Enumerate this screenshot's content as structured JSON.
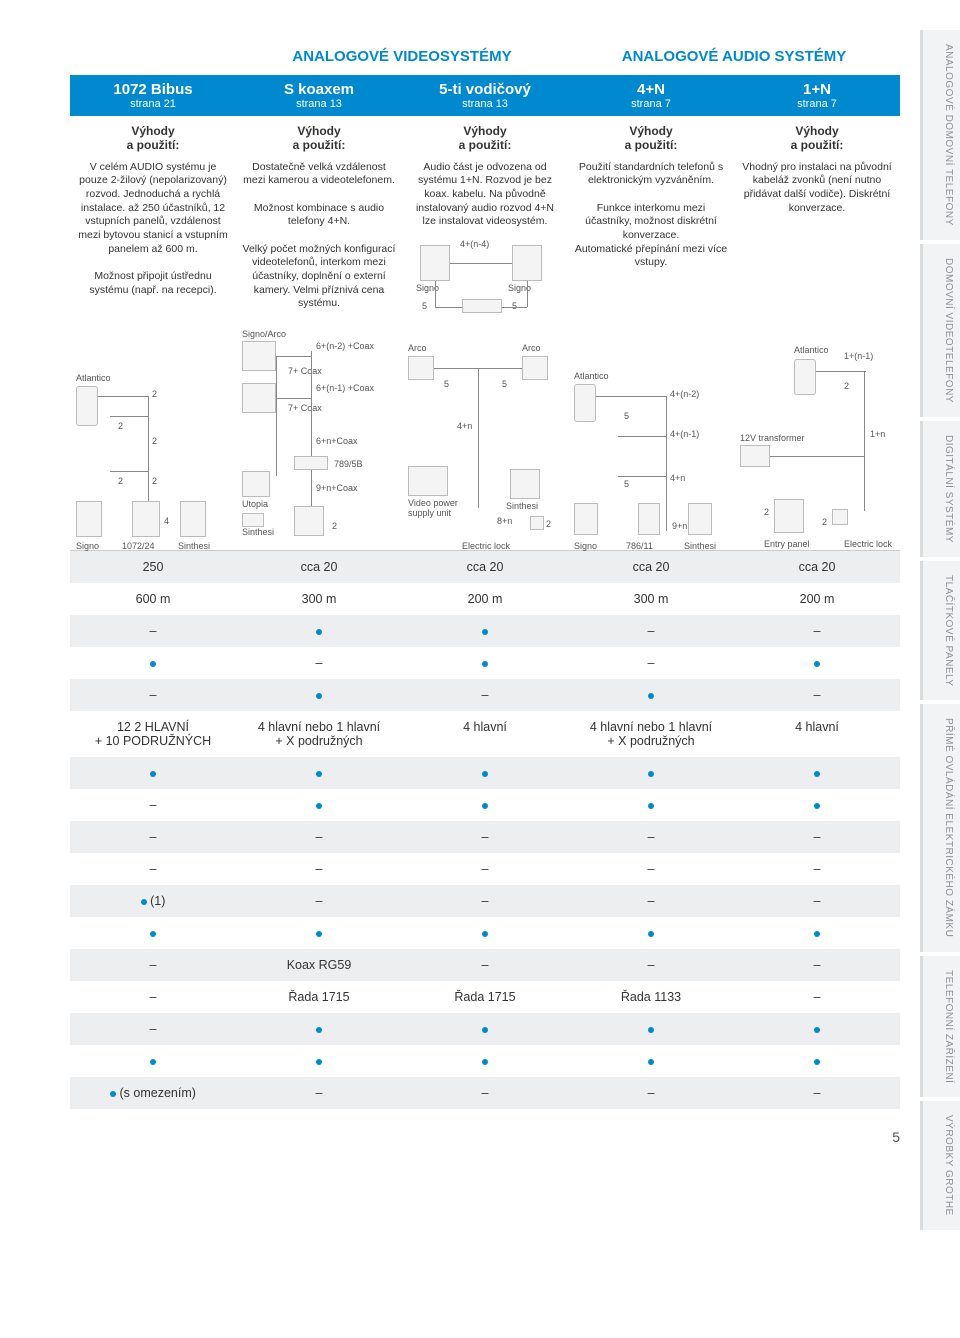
{
  "page_number": "5",
  "top_headers": {
    "video": "ANALOGOVÉ VIDEOSYSTÉMY",
    "audio": "ANALOGOVÉ AUDIO SYSTÉMY"
  },
  "side_tabs": [
    "ANALOGOVÉ DOMOVNÍ TELEFONY",
    "DOMOVNÍ VIDEOTELEFONY",
    "DIGITÁLNÍ SYSTÉMY",
    "TLAČÍTKOVÉ PANELY",
    "PŘÍMÉ OVLÁDÁNÍ ELEKTRICKÉHO ZÁMKU",
    "TELEFONNÍ ZAŘÍZENÍ",
    "VÝROBKY GROTHE"
  ],
  "columns": [
    {
      "title": "1072 Bibus",
      "page_ref": "strana 21",
      "vyhody_title": "Výhody\na použití:",
      "vyhody_body": "V celém AUDIO systému je pouze 2-žilový (nepolarizo­vaný) rozvod. Jednoduchá a rychlá instalace. až 250 účastníků, 12 vstupních panelů, vzdálenost mezi bytovou stanicí a vstupním panelem až 600 m.\n\nMožnost připojit ústřednu systému (např. na recepci)."
    },
    {
      "title": "S koaxem",
      "page_ref": "strana 13",
      "vyhody_title": "Výhody\na použití:",
      "vyhody_body": "Dostatečně velká vzdálenost mezi kamerou a videotelefonem.\n\nMožnost kombinace s audio telefony 4+N.\n\nVelký počet možných konfigurací videotelefonů, interkom mezi účastníky, doplnění o externí kamery. Velmi příznivá cena systému."
    },
    {
      "title": "5-ti vodičový",
      "page_ref": "strana 13",
      "vyhody_title": "Výhody\na použití:",
      "vyhody_body": "Audio část je odvozena od systému 1+N. Rozvod je bez koax. kabelu. Na původně instalovaný audio rozvod 4+N lze instalovat videosystém."
    },
    {
      "title": "4+N",
      "page_ref": "strana 7",
      "vyhody_title": "Výhody\na použití:",
      "vyhody_body": "Použití standardních telefonů s elektronickým vyzváněním.\n\nFunkce interkomu mezi účastníky, možnost diskrétní konverzace.\nAutomatické přepínání mezi více vstupy."
    },
    {
      "title": "1+N",
      "page_ref": "strana 7",
      "vyhody_title": "Výhody\na použití:",
      "vyhody_body": "Vhodný pro instalaci na pů­vodní kabeláž zvonků (není nutno přidávat další vodiče). Diskrétní konverzace."
    }
  ],
  "diagrams": {
    "c3_inline": {
      "signo_l": "Signo",
      "signo_r": "Signo",
      "wires": "4+(n-4)",
      "five_l": "5",
      "five_r": "5"
    },
    "c1": {
      "atlantico": "Atlantico",
      "signo": "Signo",
      "module": "1072/24",
      "sinthesi": "Sinthesi",
      "two": "2",
      "four": "4"
    },
    "c2": {
      "signoarco": "Signo/Arco",
      "utopia": "Utopia",
      "sinthesi": "Sinthesi",
      "l1": "6+(n-2) +Coax",
      "l2": "7+ Coax",
      "l3": "6+(n-1) +Coax",
      "l4": "7+ Coax",
      "l5": "6+n+Coax",
      "l6": "789/5B",
      "l7": "9+n+Coax",
      "two": "2"
    },
    "c3": {
      "arco_l": "Arco",
      "arco_r": "Arco",
      "five": "5",
      "four_n": "4+n",
      "eight_n": "8+n",
      "two": "2",
      "vpower": "Video power supply unit",
      "sinthesi": "Sinthesi",
      "elock": "Electric lock"
    },
    "c4": {
      "atlantico": "Atlantico",
      "l1": "4+(n-2)",
      "l2": "4+(n-1)",
      "l3": "4+n",
      "five": "5",
      "nine_n": "9+n",
      "signo": "Signo",
      "module": "786/11",
      "sinthesi": "Sinthesi"
    },
    "c5": {
      "atlantico": "Atlantico",
      "l1": "1+(n-1)",
      "two": "2",
      "one_n": "1+n",
      "transformer": "12V transformer",
      "entry": "Entry panel",
      "elock": "Electric lock"
    }
  },
  "table_rows": [
    {
      "bg": "grey",
      "cells": [
        "250",
        "cca 20",
        "cca 20",
        "cca 20",
        "cca 20"
      ]
    },
    {
      "bg": "white",
      "cells": [
        "600 m",
        "300 m",
        "200 m",
        "300 m",
        "200 m"
      ]
    },
    {
      "bg": "grey",
      "cells": [
        "–",
        "•",
        "•",
        "–",
        "–"
      ]
    },
    {
      "bg": "white",
      "cells": [
        "•",
        "–",
        "•",
        "–",
        "•"
      ]
    },
    {
      "bg": "grey",
      "cells": [
        "–",
        "•",
        "–",
        "•",
        "–"
      ]
    },
    {
      "bg": "white",
      "cells": [
        "12   2 HLAVNÍ\n+ 10 PODRUŽNÝCH",
        "4 hlavní nebo 1 hlavní\n+ X podružných",
        "4 hlavní",
        "4 hlavní nebo 1 hlavní\n+ X podružných",
        "4 hlavní"
      ]
    },
    {
      "bg": "grey",
      "cells": [
        "•",
        "•",
        "•",
        "•",
        "•"
      ]
    },
    {
      "bg": "white",
      "cells": [
        "–",
        "•",
        "•",
        "•",
        "•"
      ]
    },
    {
      "bg": "grey",
      "cells": [
        "–",
        "–",
        "–",
        "–",
        "–"
      ]
    },
    {
      "bg": "white",
      "cells": [
        "–",
        "–",
        "–",
        "–",
        "–"
      ]
    },
    {
      "bg": "grey",
      "cells": [
        "• (1)",
        "–",
        "–",
        "–",
        "–"
      ]
    },
    {
      "bg": "white",
      "cells": [
        "•",
        "•",
        "•",
        "•",
        "•"
      ]
    },
    {
      "bg": "grey",
      "cells": [
        "–",
        "Koax RG59",
        "–",
        "–",
        "–"
      ]
    },
    {
      "bg": "white",
      "cells": [
        "–",
        "Řada 1715",
        "Řada 1715",
        "Řada 1133",
        "–"
      ]
    },
    {
      "bg": "grey",
      "cells": [
        "–",
        "•",
        "•",
        "•",
        "•"
      ]
    },
    {
      "bg": "white",
      "cells": [
        "•",
        "•",
        "•",
        "•",
        "•"
      ]
    },
    {
      "bg": "grey",
      "cells": [
        "• (s omezením)",
        "–",
        "–",
        "–",
        "–"
      ]
    }
  ],
  "colors": {
    "accent": "#0089cf",
    "grey_row": "#eceeef",
    "side_tab_bg": "#f2f3f4",
    "side_tab_text": "#8a8f94"
  }
}
